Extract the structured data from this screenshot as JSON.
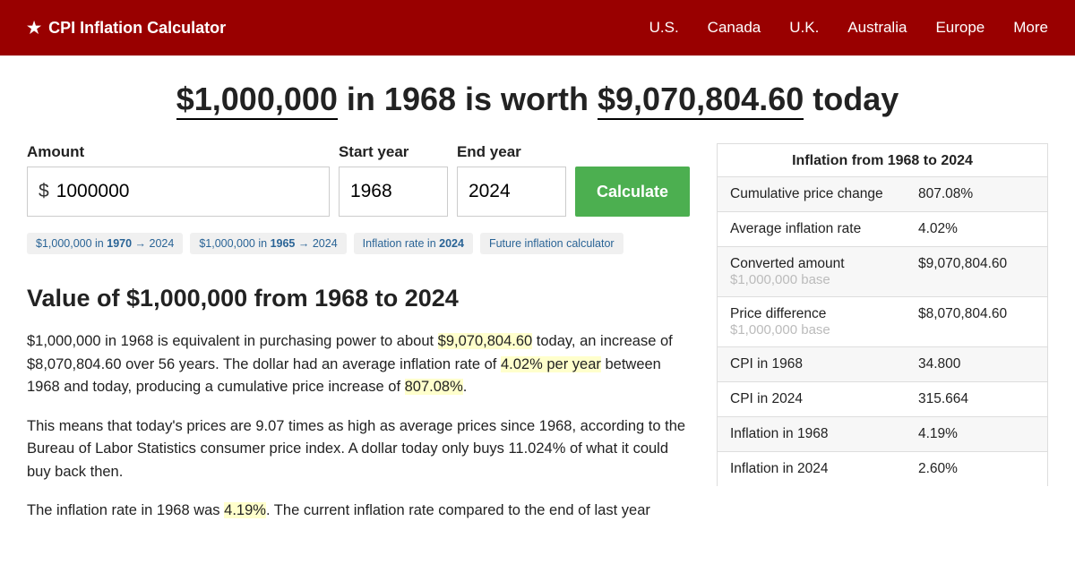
{
  "header": {
    "brand": "CPI Inflation Calculator",
    "nav": [
      "U.S.",
      "Canada",
      "U.K.",
      "Australia",
      "Europe",
      "More"
    ]
  },
  "title": {
    "amount": "$1,000,000",
    "mid1": " in 1968 is worth ",
    "result": "$9,070,804.60",
    "tail": " today"
  },
  "form": {
    "amount_label": "Amount",
    "amount_prefix": "$",
    "amount_value": "1000000",
    "start_label": "Start year",
    "start_value": "1968",
    "end_label": "End year",
    "end_value": "2024",
    "calc_label": "Calculate"
  },
  "chips": {
    "c0a": "$1,000,000 in ",
    "c0b": "1970",
    "c0c": " → 2024",
    "c1a": "$1,000,000 in ",
    "c1b": "1965",
    "c1c": " → 2024",
    "c2a": "Inflation rate in ",
    "c2b": "2024",
    "c3": "Future inflation calculator"
  },
  "section_title": "Value of $1,000,000 from 1968 to 2024",
  "para1": {
    "a": "$1,000,000 in 1968 is equivalent in purchasing power to about ",
    "h1": "$9,070,804.60",
    "b": " today, an increase of $8,070,804.60 over 56 years. The dollar had an average inflation rate of ",
    "h2": "4.02% per year",
    "c": " between 1968 and today, producing a cumulative price increase of ",
    "h3": "807.08%",
    "d": "."
  },
  "para2": "This means that today's prices are 9.07 times as high as average prices since 1968, according to the Bureau of Labor Statistics consumer price index. A dollar today only buys 11.024% of what it could buy back then.",
  "para3": {
    "a": "The inflation rate in 1968 was ",
    "h1": "4.19%",
    "b": ". The current inflation rate compared to the end of last year"
  },
  "stats": {
    "title": "Inflation from 1968 to 2024",
    "rows": [
      {
        "label": "Cumulative price change",
        "sub": "",
        "value": "807.08%"
      },
      {
        "label": "Average inflation rate",
        "sub": "",
        "value": "4.02%"
      },
      {
        "label": "Converted amount",
        "sub": "$1,000,000 base",
        "value": "$9,070,804.60"
      },
      {
        "label": "Price difference",
        "sub": "$1,000,000 base",
        "value": "$8,070,804.60"
      },
      {
        "label": "CPI in 1968",
        "sub": "",
        "value": "34.800"
      },
      {
        "label": "CPI in 2024",
        "sub": "",
        "value": "315.664"
      },
      {
        "label": "Inflation in 1968",
        "sub": "",
        "value": "4.19%"
      },
      {
        "label": "Inflation in 2024",
        "sub": "",
        "value": "2.60%"
      }
    ]
  }
}
